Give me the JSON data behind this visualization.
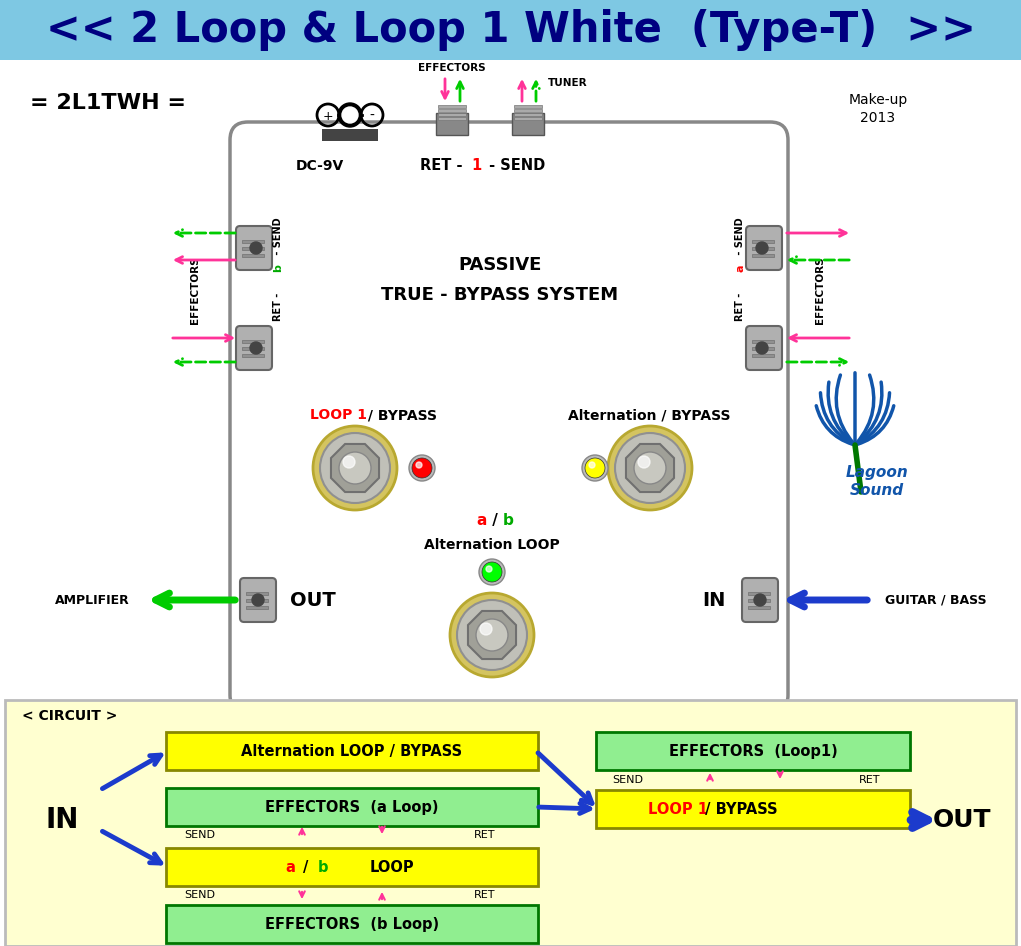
{
  "title": "<< 2 Loop & Loop 1 White  (Type-T)  >>",
  "title_bg": "#7EC8E3",
  "title_color": "#000080",
  "title_fontsize": 30,
  "bg_color": "#FFFFFF",
  "label_2l1twh": "= 2L1TWH =",
  "makeup_text": "Make-up\n2013",
  "pedal_bg": "#F0F0EC",
  "pedal_border": "#888888",
  "passive_text": "PASSIVE",
  "bypass_text": "TRUE - BYPASS SYSTEM",
  "dc9v_text": "DC-9V",
  "loop1_text": "LOOP 1",
  "bypass_label": " / BYPASS",
  "alt_bypass_text": "Alternation / BYPASS",
  "ab_a": "a",
  "ab_b": "b",
  "ab_slash": " / ",
  "alt_loop_text": "Alternation LOOP",
  "out_text": "OUT",
  "in_text": "IN",
  "amplifier_text": "AMPLIFIER",
  "guitar_bass_text": "GUITAR / BASS",
  "effectors_top_text": "EFFECTORS",
  "tuner_text": "TUNER",
  "effectors_left_text": "EFFECTORS",
  "effectors_right_text": "EFFECTORS",
  "ret_b_send": "RET - b - SEND",
  "ret_a_send": "RET - a - SEND",
  "circuit_title": "< CIRCUIT >",
  "circuit_bg": "#FFFFD0",
  "circuit_border": "#CCCCCC",
  "yellow_box1_text": "Alternation LOOP / BYPASS",
  "yellow_box1_bg": "#FFFF00",
  "green_box1_text": "EFFECTORS  (a Loop)",
  "green_box1_bg": "#90EE90",
  "yellow_box2_a": "a",
  "yellow_box2_b": "b",
  "yellow_box2_rest": " LOOP",
  "yellow_box2_bg": "#FFFF00",
  "green_box3_text": "EFFECTORS  (b Loop)",
  "green_box3_bg": "#90EE90",
  "green_box4_text": "EFFECTORS  (Loop1)",
  "green_box4_bg": "#90EE90",
  "yellow_box3_loop1": "LOOP 1",
  "yellow_box3_rest": " / BYPASS",
  "yellow_box3_bg": "#FFFF00",
  "arrow_blue": "#1C3BCC",
  "arrow_green": "#00CC00",
  "arrow_pink": "#FF3399",
  "arrow_green_dashed": "#00CC00",
  "led_red": "#FF0000",
  "led_yellow": "#FFFF00",
  "led_green": "#00FF00",
  "knob_ring": "#D4C870",
  "knob_mid": "#C8C8C0",
  "knob_inner": "#A8A8A0",
  "lagoon_blue": "#1155AA",
  "lagoon_dark_blue": "#0033AA",
  "lagoon_green": "#005500",
  "pedal_white": "#FFFFFF",
  "jack_gray": "#AAAAAA",
  "jack_dark": "#666666",
  "send_ret_label": "SEND",
  "ret_label": "RET",
  "send_label2": "SEND",
  "ret_label2": "RET",
  "ret_1_send_black": "RET - ",
  "ret_1_red": "1",
  "ret_1_send_black2": " - SEND"
}
